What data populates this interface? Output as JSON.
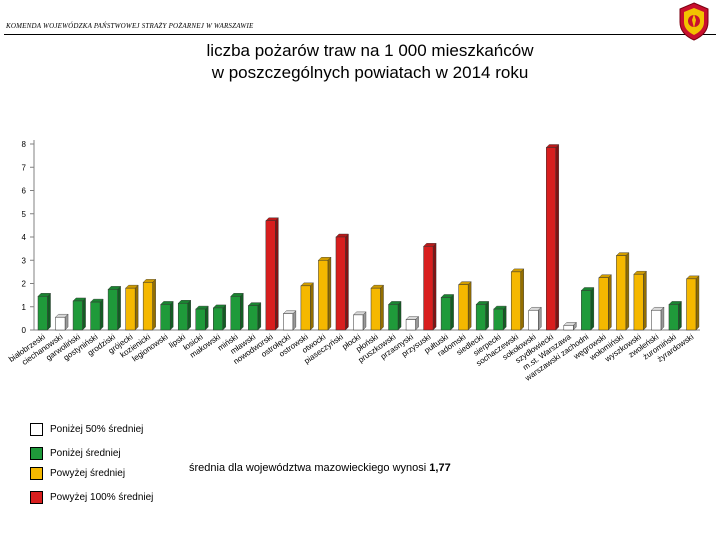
{
  "header": {
    "organization": "KOMENDA WOJEWÓDZKA PAŃSTWOWEJ STRAŻY POŻARNEJ W WARSZAWIE",
    "crest_icon": "fire-service-crest-icon"
  },
  "colors": {
    "below_50": "#ffffff",
    "below_avg": "#1f9a3a",
    "above_avg": "#f5b800",
    "above_100": "#d81e1e"
  },
  "legend": {
    "items": [
      {
        "label": "Poniżej 50% średniej",
        "color": "#ffffff"
      },
      {
        "label": "Poniżej średniej",
        "color": "#1f9a3a"
      },
      {
        "label": "Powyżej średniej",
        "color": "#f5b800"
      },
      {
        "label": "Powyżej 100% średniej",
        "color": "#d81e1e"
      }
    ]
  },
  "average_note": {
    "text": "średnia dla województwa mazowieckiego wynosi ",
    "value": "1,77"
  },
  "chart_data": {
    "type": "bar",
    "title": [
      "liczba pożarów traw na 1 000 mieszkańców",
      "w poszczególnych powiatach w 2014 roku"
    ],
    "xlabel": "",
    "ylabel": "",
    "ylim": [
      0,
      8
    ],
    "yticks": [
      0,
      1,
      2,
      3,
      4,
      5,
      6,
      7,
      8
    ],
    "grid": false,
    "legend_position": "bottom-left",
    "categories": [
      "białobrzeski",
      "ciechanowski",
      "garwoliński",
      "gostyniński",
      "grodziski",
      "grójecki",
      "kozienicki",
      "legionowski",
      "lipski",
      "łosicki",
      "makowski",
      "miński",
      "mławski",
      "nowodworski",
      "ostrołęcki",
      "ostrowski",
      "otwocki",
      "piaseczyński",
      "płocki",
      "płoński",
      "pruszkowski",
      "przasnyski",
      "przysuski",
      "pułtuski",
      "radomski",
      "siedlecki",
      "sierpecki",
      "sochaczewski",
      "sokołowski",
      "szydłowiecki",
      "m.st. Warszawa",
      "warszawski zachodni",
      "węgrowski",
      "wołomiński",
      "wyszkowski",
      "zwoleński",
      "żuromiński",
      "żyrardowski"
    ],
    "values": [
      1.45,
      0.55,
      1.25,
      1.2,
      1.75,
      1.8,
      2.05,
      1.1,
      1.15,
      0.9,
      0.95,
      1.45,
      1.05,
      4.7,
      0.7,
      1.9,
      3.0,
      4.0,
      0.65,
      1.8,
      1.1,
      0.45,
      3.6,
      1.4,
      1.95,
      1.1,
      0.9,
      2.5,
      0.85,
      7.85,
      0.2,
      1.7,
      2.25,
      3.2,
      2.4,
      0.85,
      1.1,
      2.2
    ],
    "classes": [
      "below_avg",
      "below_50",
      "below_avg",
      "below_avg",
      "below_avg",
      "above_avg",
      "above_avg",
      "below_avg",
      "below_avg",
      "below_avg",
      "below_avg",
      "below_avg",
      "below_avg",
      "above_100",
      "below_50",
      "above_avg",
      "above_avg",
      "above_100",
      "below_50",
      "above_avg",
      "below_avg",
      "below_50",
      "above_100",
      "below_avg",
      "above_avg",
      "below_avg",
      "below_avg",
      "above_avg",
      "below_50",
      "above_100",
      "below_50",
      "below_avg",
      "above_avg",
      "above_avg",
      "above_avg",
      "below_50",
      "below_avg",
      "above_avg"
    ]
  }
}
